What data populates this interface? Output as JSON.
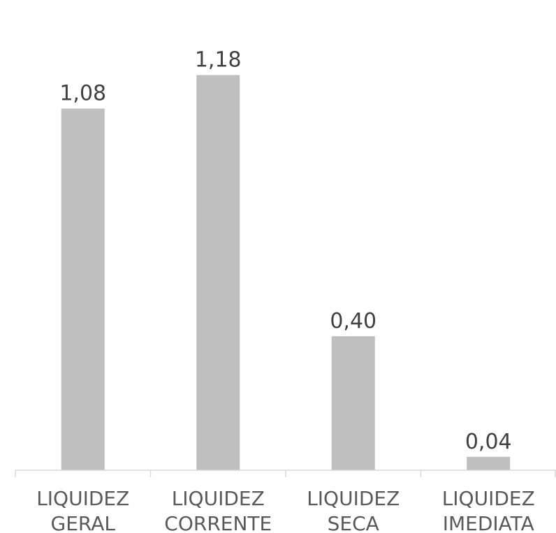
{
  "chart_data": {
    "type": "bar",
    "categories": [
      [
        "LIQUIDEZ",
        "GERAL"
      ],
      [
        "LIQUIDEZ",
        "CORRENTE"
      ],
      [
        "LIQUIDEZ",
        "SECA"
      ],
      [
        "LIQUIDEZ",
        "IMEDIATA"
      ]
    ],
    "values": [
      1.08,
      1.18,
      0.4,
      0.04
    ],
    "data_labels": [
      "1,08",
      "1,18",
      "0,40",
      "0,04"
    ],
    "title": "",
    "xlabel": "",
    "ylabel": "",
    "ylim": [
      0,
      1.3
    ],
    "grid": false,
    "legend": "none",
    "colors": {
      "bar": "#bfbfbf",
      "axis": "#d9d9d9",
      "label_text": "#404040",
      "category_text": "#595959"
    }
  }
}
